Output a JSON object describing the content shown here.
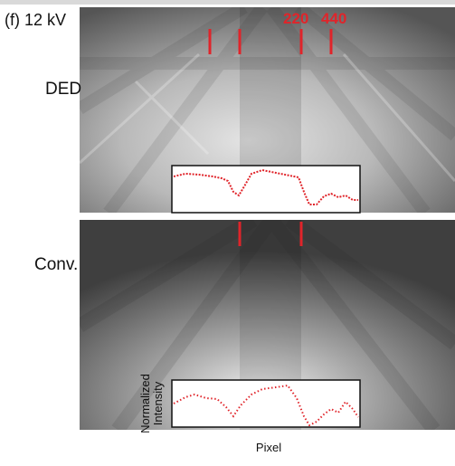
{
  "panel_label": "(f) 12 kV",
  "band_labels": [
    "220",
    "440"
  ],
  "images": [
    {
      "label": "DED"
    },
    {
      "label": "Conv."
    }
  ],
  "inset": {
    "y_label": "Normalized Intensity",
    "x_label": "Pixel"
  }
}
